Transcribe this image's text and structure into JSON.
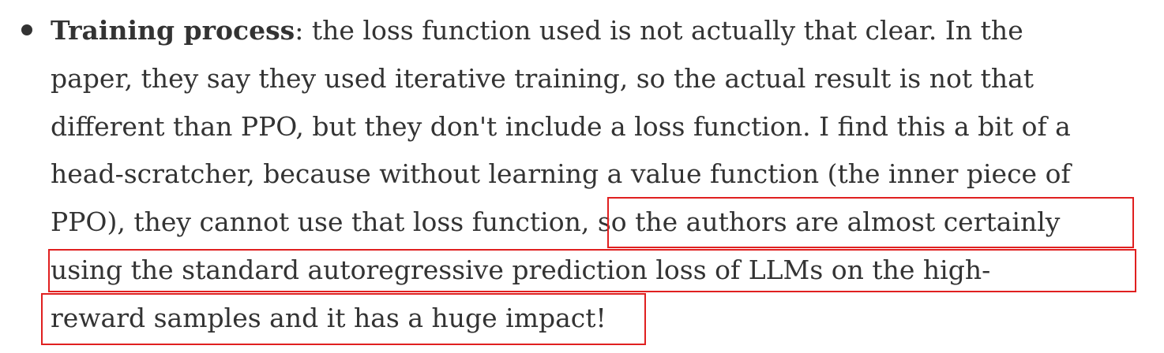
{
  "item": {
    "term": "Training process",
    "lines": [
      ": the loss function used is not actually that clear. In the",
      "paper, they say they used iterative training, so the actual result is not that",
      "different than PPO, but they don't include a loss function. I find this a bit of a",
      "head-scratcher, because without learning a value function (the inner piece of",
      "PPO), they cannot use that loss function, so the authors are almost certainly",
      "using the standard autoregressive prediction loss of LLMs on the high-",
      "reward samples and it has a huge impact!"
    ]
  }
}
